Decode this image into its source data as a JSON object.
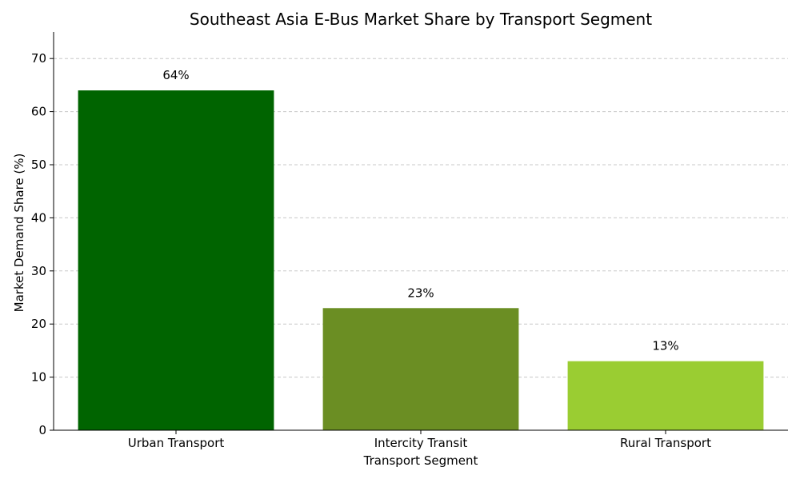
{
  "chart_data": {
    "type": "bar",
    "title": "Southeast Asia E-Bus Market Share by Transport Segment",
    "xlabel": "Transport Segment",
    "ylabel": "Market Demand Share (%)",
    "categories": [
      "Urban Transport",
      "Intercity Transit",
      "Rural Transport"
    ],
    "values": [
      64,
      23,
      13
    ],
    "data_labels": [
      "64%",
      "23%",
      "13%"
    ],
    "colors": [
      "#006400",
      "#6b8e23",
      "#9acd32"
    ],
    "ylim": [
      0,
      75
    ],
    "yticks": [
      0,
      10,
      20,
      30,
      40,
      50,
      60,
      70
    ],
    "grid": "y-dashed",
    "legend": "none"
  }
}
